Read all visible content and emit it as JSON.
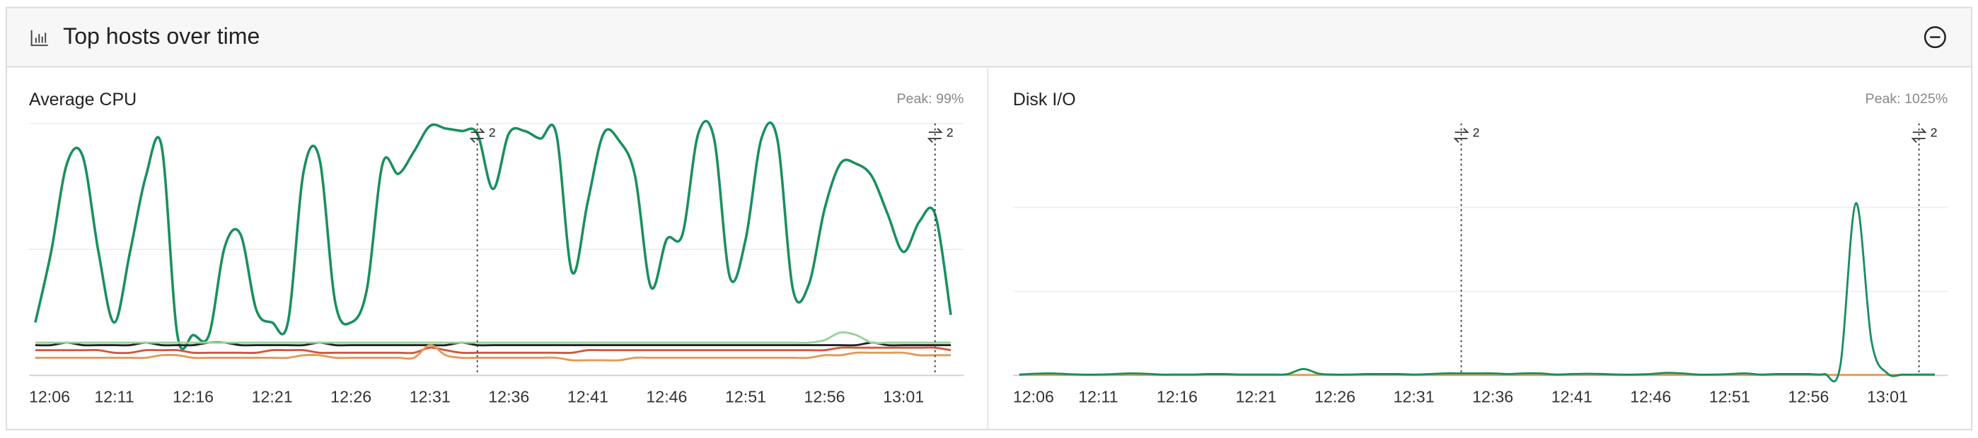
{
  "header": {
    "title": "Top hosts over time"
  },
  "chart_data": [
    {
      "type": "line",
      "title": "Average CPU",
      "annotation": "Peak: 99%",
      "categories": [
        "12:06",
        null,
        null,
        null,
        null,
        "12:11",
        null,
        null,
        null,
        null,
        "12:16",
        null,
        null,
        null,
        null,
        "12:21",
        null,
        null,
        null,
        null,
        "12:26",
        null,
        null,
        null,
        null,
        "12:31",
        null,
        null,
        null,
        null,
        "12:36",
        null,
        null,
        null,
        null,
        "12:41",
        null,
        null,
        null,
        null,
        "12:46",
        null,
        null,
        null,
        null,
        "12:51",
        null,
        null,
        null,
        null,
        "12:56",
        null,
        null,
        null,
        null,
        "13:01",
        null,
        null,
        null
      ],
      "ylim": [
        0,
        100
      ],
      "yticks": [
        0,
        50,
        100
      ],
      "grid": true,
      "markers": [
        {
          "x_index": 28,
          "label": "2"
        },
        {
          "x_index": 57,
          "label": "2"
        }
      ],
      "series": [
        {
          "color": "#1a8f5f",
          "values": [
            21,
            49,
            84,
            87,
            49,
            21,
            49,
            79,
            91,
            16,
            16,
            16,
            51,
            56,
            26,
            21,
            21,
            81,
            86,
            29,
            21,
            34,
            84,
            80,
            89,
            99,
            98,
            97,
            96,
            74,
            96,
            97,
            94,
            96,
            41,
            69,
            96,
            93,
            79,
            35,
            54,
            56,
            96,
            94,
            39,
            54,
            94,
            94,
            34,
            36,
            66,
            84,
            84,
            79,
            64,
            49,
            61,
            64,
            24
          ]
        },
        {
          "color": "#222222",
          "values": [
            12,
            12,
            13,
            12,
            12,
            12,
            12,
            13,
            12,
            12,
            12,
            13,
            13,
            12,
            12,
            12,
            12,
            12,
            13,
            12,
            12,
            12,
            12,
            12,
            12,
            12,
            12,
            13,
            12,
            12,
            12,
            12,
            12,
            12,
            12,
            12,
            12,
            12,
            12,
            12,
            12,
            12,
            12,
            12,
            12,
            12,
            12,
            12,
            12,
            12,
            12,
            12,
            12,
            13,
            12,
            12,
            12,
            12,
            12
          ]
        },
        {
          "color": "#95d39a",
          "values": [
            13,
            13,
            13,
            13,
            13,
            13,
            13,
            13,
            13,
            13,
            13,
            13,
            13,
            13,
            13,
            13,
            13,
            13,
            13,
            13,
            13,
            13,
            13,
            13,
            13,
            13,
            13,
            13,
            13,
            13,
            13,
            13,
            13,
            13,
            13,
            13,
            13,
            13,
            13,
            13,
            13,
            13,
            13,
            13,
            13,
            13,
            13,
            13,
            13,
            13,
            14,
            17,
            16,
            13,
            13,
            13,
            13,
            13,
            13
          ]
        },
        {
          "color": "#d4573b",
          "values": [
            10,
            10,
            10,
            10,
            10,
            9,
            9,
            10,
            10,
            10,
            9,
            9,
            9,
            9,
            9,
            10,
            10,
            10,
            9,
            9,
            9,
            9,
            9,
            9,
            9,
            11,
            10,
            9,
            9,
            9,
            9,
            9,
            9,
            9,
            9,
            10,
            10,
            10,
            10,
            10,
            10,
            10,
            10,
            10,
            10,
            10,
            10,
            10,
            10,
            10,
            10,
            11,
            11,
            11,
            11,
            11,
            11,
            11,
            10
          ]
        },
        {
          "color": "#e39a55",
          "values": [
            7,
            7,
            7,
            7,
            7,
            7,
            7,
            7,
            8,
            8,
            7,
            7,
            7,
            7,
            7,
            7,
            7,
            8,
            8,
            7,
            7,
            7,
            7,
            7,
            7,
            12,
            8,
            7,
            7,
            7,
            7,
            7,
            7,
            7,
            6,
            6,
            6,
            6,
            7,
            7,
            7,
            7,
            7,
            7,
            7,
            7,
            7,
            7,
            7,
            7,
            8,
            8,
            9,
            9,
            9,
            9,
            8,
            8,
            8
          ]
        }
      ]
    },
    {
      "type": "line",
      "title": "Disk I/O",
      "annotation": "Peak: 1025%",
      "categories": [
        "12:06",
        null,
        null,
        null,
        null,
        "12:11",
        null,
        null,
        null,
        null,
        "12:16",
        null,
        null,
        null,
        null,
        "12:21",
        null,
        null,
        null,
        null,
        "12:26",
        null,
        null,
        null,
        null,
        "12:31",
        null,
        null,
        null,
        null,
        "12:36",
        null,
        null,
        null,
        null,
        "12:41",
        null,
        null,
        null,
        null,
        "12:46",
        null,
        null,
        null,
        null,
        "12:51",
        null,
        null,
        null,
        null,
        "12:56",
        null,
        null,
        null,
        null,
        "13:01",
        null,
        null,
        null
      ],
      "ylim": [
        0,
        1500
      ],
      "yticks": [
        0,
        500,
        1000
      ],
      "grid": true,
      "markers": [
        {
          "x_index": 28,
          "label": "2"
        },
        {
          "x_index": 57,
          "label": "2"
        }
      ],
      "series": [
        {
          "color": "#e39a55",
          "values": [
            3,
            3,
            3,
            3,
            3,
            3,
            3,
            3,
            3,
            3,
            3,
            3,
            3,
            3,
            3,
            3,
            3,
            3,
            3,
            3,
            3,
            3,
            3,
            3,
            3,
            3,
            3,
            3,
            3,
            3,
            3,
            3,
            3,
            3,
            3,
            3,
            3,
            3,
            3,
            3,
            3,
            3,
            3,
            3,
            3,
            3,
            3,
            3,
            3,
            3,
            3,
            3,
            3,
            3,
            3,
            3,
            3,
            3,
            3
          ]
        },
        {
          "color": "#1a8f5f",
          "values": [
            5,
            10,
            12,
            8,
            5,
            5,
            8,
            12,
            10,
            5,
            5,
            5,
            8,
            8,
            5,
            5,
            5,
            8,
            38,
            10,
            5,
            5,
            8,
            8,
            8,
            5,
            8,
            12,
            12,
            12,
            12,
            8,
            12,
            12,
            5,
            8,
            10,
            8,
            5,
            5,
            8,
            15,
            12,
            5,
            5,
            8,
            12,
            5,
            8,
            8,
            8,
            8,
            50,
            1025,
            200,
            12,
            5,
            5,
            5
          ]
        }
      ]
    }
  ]
}
